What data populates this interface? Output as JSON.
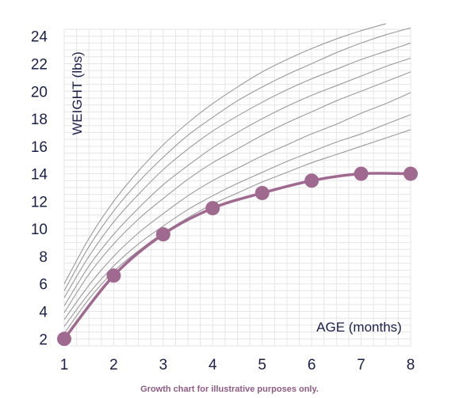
{
  "chart_data": {
    "type": "line",
    "xlabel": "AGE (months)",
    "ylabel": "WEIGHT (lbs)",
    "xlim": [
      1,
      8
    ],
    "ylim": [
      1.5,
      24.5
    ],
    "x_ticks": [
      1,
      2,
      3,
      4,
      5,
      6,
      7,
      8
    ],
    "y_ticks": [
      2,
      4,
      6,
      8,
      10,
      12,
      14,
      16,
      18,
      20,
      22,
      24
    ],
    "grid": true,
    "reference_curves": [
      {
        "x": [
          1,
          1.5,
          2,
          2.5,
          3,
          3.5,
          4,
          4.5,
          5,
          5.5,
          6,
          6.5,
          7,
          7.5,
          8
        ],
        "values": [
          2.4,
          4.9,
          6.9,
          8.4,
          9.7,
          10.8,
          11.8,
          12.6,
          13.4,
          14.1,
          14.8,
          15.4,
          16.0,
          16.6,
          17.2
        ]
      },
      {
        "x": [
          1,
          1.5,
          2,
          2.5,
          3,
          3.5,
          4,
          4.5,
          5,
          5.5,
          6,
          6.5,
          7,
          7.5,
          8
        ],
        "values": [
          2.9,
          5.3,
          7.3,
          8.9,
          10.2,
          11.4,
          12.4,
          13.3,
          14.1,
          14.9,
          15.6,
          16.3,
          16.9,
          17.6,
          18.3
        ]
      },
      {
        "x": [
          1,
          1.5,
          2,
          2.5,
          3,
          3.5,
          4,
          4.5,
          5,
          5.5,
          6,
          6.5,
          7,
          7.5,
          8
        ],
        "values": [
          3.4,
          5.9,
          8.0,
          9.7,
          11.1,
          12.4,
          13.5,
          14.4,
          15.3,
          16.1,
          16.9,
          17.6,
          18.4,
          19.1,
          19.9
        ]
      },
      {
        "x": [
          1,
          1.5,
          2,
          2.5,
          3,
          3.5,
          4,
          4.5,
          5,
          5.5,
          6,
          6.5,
          7,
          7.5,
          8
        ],
        "values": [
          3.9,
          6.7,
          8.9,
          10.7,
          12.2,
          13.6,
          14.8,
          15.8,
          16.8,
          17.7,
          18.5,
          19.3,
          20.0,
          20.7,
          21.4
        ]
      },
      {
        "x": [
          1,
          1.5,
          2,
          2.5,
          3,
          3.5,
          4,
          4.5,
          5,
          5.5,
          6,
          6.5,
          7,
          7.5,
          8
        ],
        "values": [
          4.4,
          7.3,
          9.6,
          11.5,
          13.2,
          14.6,
          15.9,
          17.0,
          18.0,
          18.9,
          19.7,
          20.4,
          21.1,
          21.8,
          22.4
        ]
      },
      {
        "x": [
          1,
          1.5,
          2,
          2.5,
          3,
          3.5,
          4,
          4.5,
          5,
          5.5,
          6,
          6.5,
          7,
          7.5,
          8
        ],
        "values": [
          5.0,
          8.0,
          10.5,
          12.5,
          14.3,
          15.8,
          17.1,
          18.2,
          19.2,
          20.1,
          20.9,
          21.6,
          22.3,
          22.9,
          23.5
        ]
      },
      {
        "x": [
          1,
          1.5,
          2,
          2.5,
          3,
          3.5,
          4,
          4.5,
          5,
          5.5,
          6,
          6.5,
          7,
          7.5,
          8
        ],
        "values": [
          5.5,
          8.7,
          11.3,
          13.4,
          15.2,
          16.8,
          18.1,
          19.3,
          20.3,
          21.2,
          22.0,
          22.8,
          23.5,
          24.1,
          24.6
        ]
      },
      {
        "x": [
          1,
          1.5,
          2,
          2.5,
          3,
          3.5,
          4,
          4.5,
          5,
          5.5,
          6,
          6.5,
          7,
          7.5
        ],
        "values": [
          6.0,
          9.3,
          12.0,
          14.2,
          16.1,
          17.7,
          19.1,
          20.3,
          21.4,
          22.3,
          23.1,
          23.8,
          24.4,
          24.9
        ]
      }
    ],
    "series": [
      {
        "x": [
          1,
          2,
          3,
          4,
          5,
          6,
          7,
          8
        ],
        "values": [
          2.0,
          6.6,
          9.6,
          11.5,
          12.6,
          13.5,
          14.0,
          14.0
        ]
      }
    ],
    "colors": {
      "series": "#a0698f",
      "reference": "#9a9a9a",
      "grid": "#e6e6e6",
      "text": "#1a1f4a"
    }
  },
  "footnote": "Growth chart for illustrative purposes only."
}
